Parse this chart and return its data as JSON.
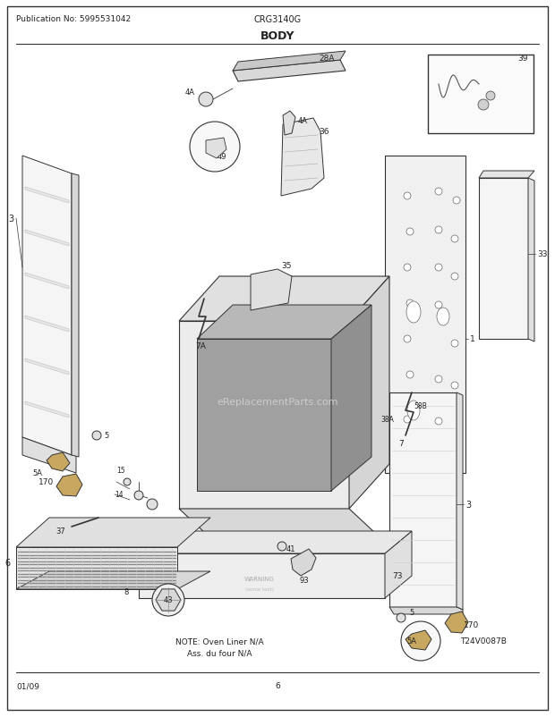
{
  "title": "BODY",
  "pub_no": "Publication No: 5995531042",
  "model": "CRG3140G",
  "date": "01/09",
  "page": "6",
  "diagram_ref": "T24V0087B",
  "note_line1": "NOTE: Oven Liner N/A",
  "note_line2": "Ass. du four N/A",
  "bg_color": "#ffffff",
  "border_color": "#333333",
  "lc": "#333333",
  "tc": "#222222",
  "wm_color": "#cccccc",
  "watermark": "eReplacementParts.com"
}
